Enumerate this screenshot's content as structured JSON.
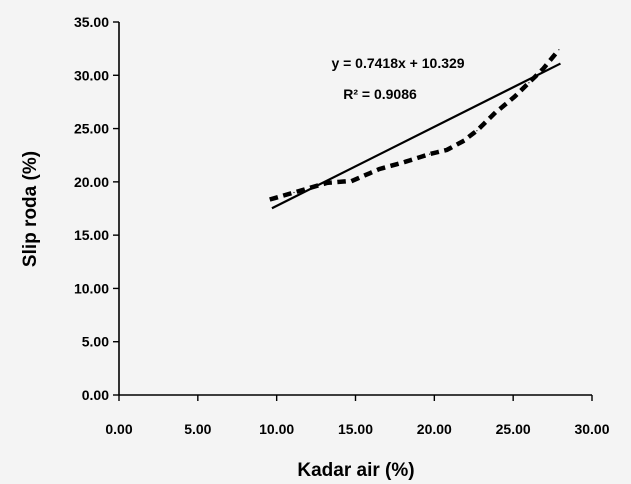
{
  "chart_data": {
    "type": "scatter",
    "title": "",
    "xlabel": "Kadar air (%)",
    "ylabel": "Slip roda (%)",
    "xlim": [
      0,
      30
    ],
    "ylim": [
      0,
      35
    ],
    "x_ticks": [
      "0.00",
      "5.00",
      "10.00",
      "15.00",
      "20.00",
      "25.00",
      "30.00"
    ],
    "y_ticks": [
      "0.00",
      "5.00",
      "10.00",
      "15.00",
      "20.00",
      "25.00",
      "30.00",
      "35.00"
    ],
    "grid": false,
    "legend": false,
    "series": [
      {
        "style": "dotted",
        "color": "#000000",
        "points": [
          {
            "x": 9.7,
            "y": 18.4
          },
          {
            "x": 11.1,
            "y": 19.0
          },
          {
            "x": 13.2,
            "y": 19.9
          },
          {
            "x": 14.8,
            "y": 20.1
          },
          {
            "x": 16.5,
            "y": 21.2
          },
          {
            "x": 18.2,
            "y": 21.9
          },
          {
            "x": 19.7,
            "y": 22.6
          },
          {
            "x": 20.8,
            "y": 23.0
          },
          {
            "x": 21.8,
            "y": 23.8
          },
          {
            "x": 22.7,
            "y": 24.8
          },
          {
            "x": 23.8,
            "y": 26.4
          },
          {
            "x": 25.1,
            "y": 28.0
          },
          {
            "x": 26.0,
            "y": 29.3
          },
          {
            "x": 26.9,
            "y": 30.6
          },
          {
            "x": 27.9,
            "y": 32.4
          }
        ]
      }
    ],
    "trendline": {
      "slope": 0.7418,
      "intercept": 10.329,
      "x_range": [
        9.7,
        28.0
      ],
      "equation": "y = 0.7418x + 10.329",
      "r_squared": "R² = 0.9086"
    }
  }
}
